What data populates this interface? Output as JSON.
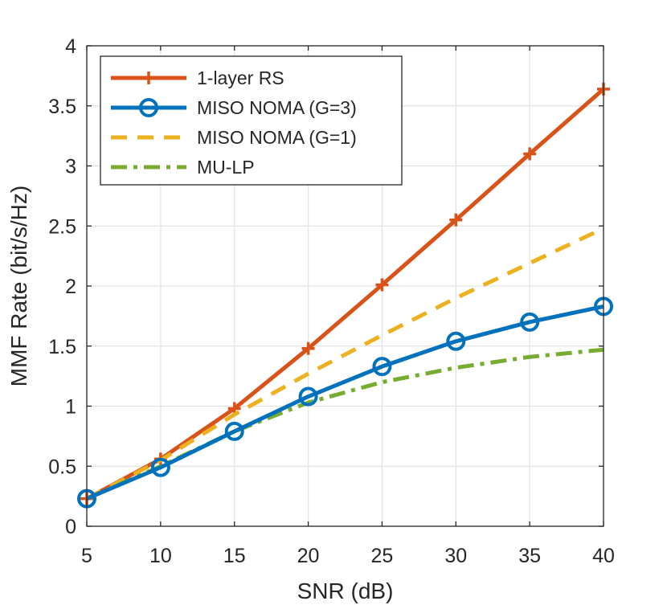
{
  "chart_data": {
    "type": "line",
    "title": "",
    "xlabel": "SNR (dB)",
    "ylabel": "MMF Rate (bit/s/Hz)",
    "xlim": [
      5,
      40
    ],
    "ylim": [
      0,
      4
    ],
    "xticks": [
      5,
      10,
      15,
      20,
      25,
      30,
      35,
      40
    ],
    "yticks": [
      0,
      0.5,
      1,
      1.5,
      2,
      2.5,
      3,
      3.5,
      4
    ],
    "ytick_labels": [
      "0",
      "0.5",
      "1",
      "1.5",
      "2",
      "2.5",
      "3",
      "3.5",
      "4"
    ],
    "grid": true,
    "legend_position": "top-left",
    "x": [
      5,
      10,
      15,
      20,
      25,
      30,
      35,
      40
    ],
    "series": [
      {
        "name": "1-layer RS",
        "color": "#D95319",
        "style": "solid",
        "marker": "plus",
        "values": [
          0.23,
          0.56,
          0.98,
          1.48,
          2.01,
          2.55,
          3.1,
          3.64
        ]
      },
      {
        "name": "MISO NOMA (G=3)",
        "color": "#0072BD",
        "style": "solid",
        "marker": "circle",
        "values": [
          0.23,
          0.49,
          0.79,
          1.08,
          1.33,
          1.54,
          1.7,
          1.83
        ]
      },
      {
        "name": "MISO NOMA (G=1)",
        "color": "#EDB120",
        "style": "dashed",
        "marker": "none",
        "values": [
          0.23,
          0.55,
          0.93,
          1.27,
          1.59,
          1.9,
          2.19,
          2.48
        ]
      },
      {
        "name": "MU-LP",
        "color": "#77AC30",
        "style": "dashdot",
        "marker": "none",
        "values": [
          0.23,
          0.5,
          0.79,
          1.03,
          1.2,
          1.32,
          1.41,
          1.47
        ]
      }
    ]
  }
}
